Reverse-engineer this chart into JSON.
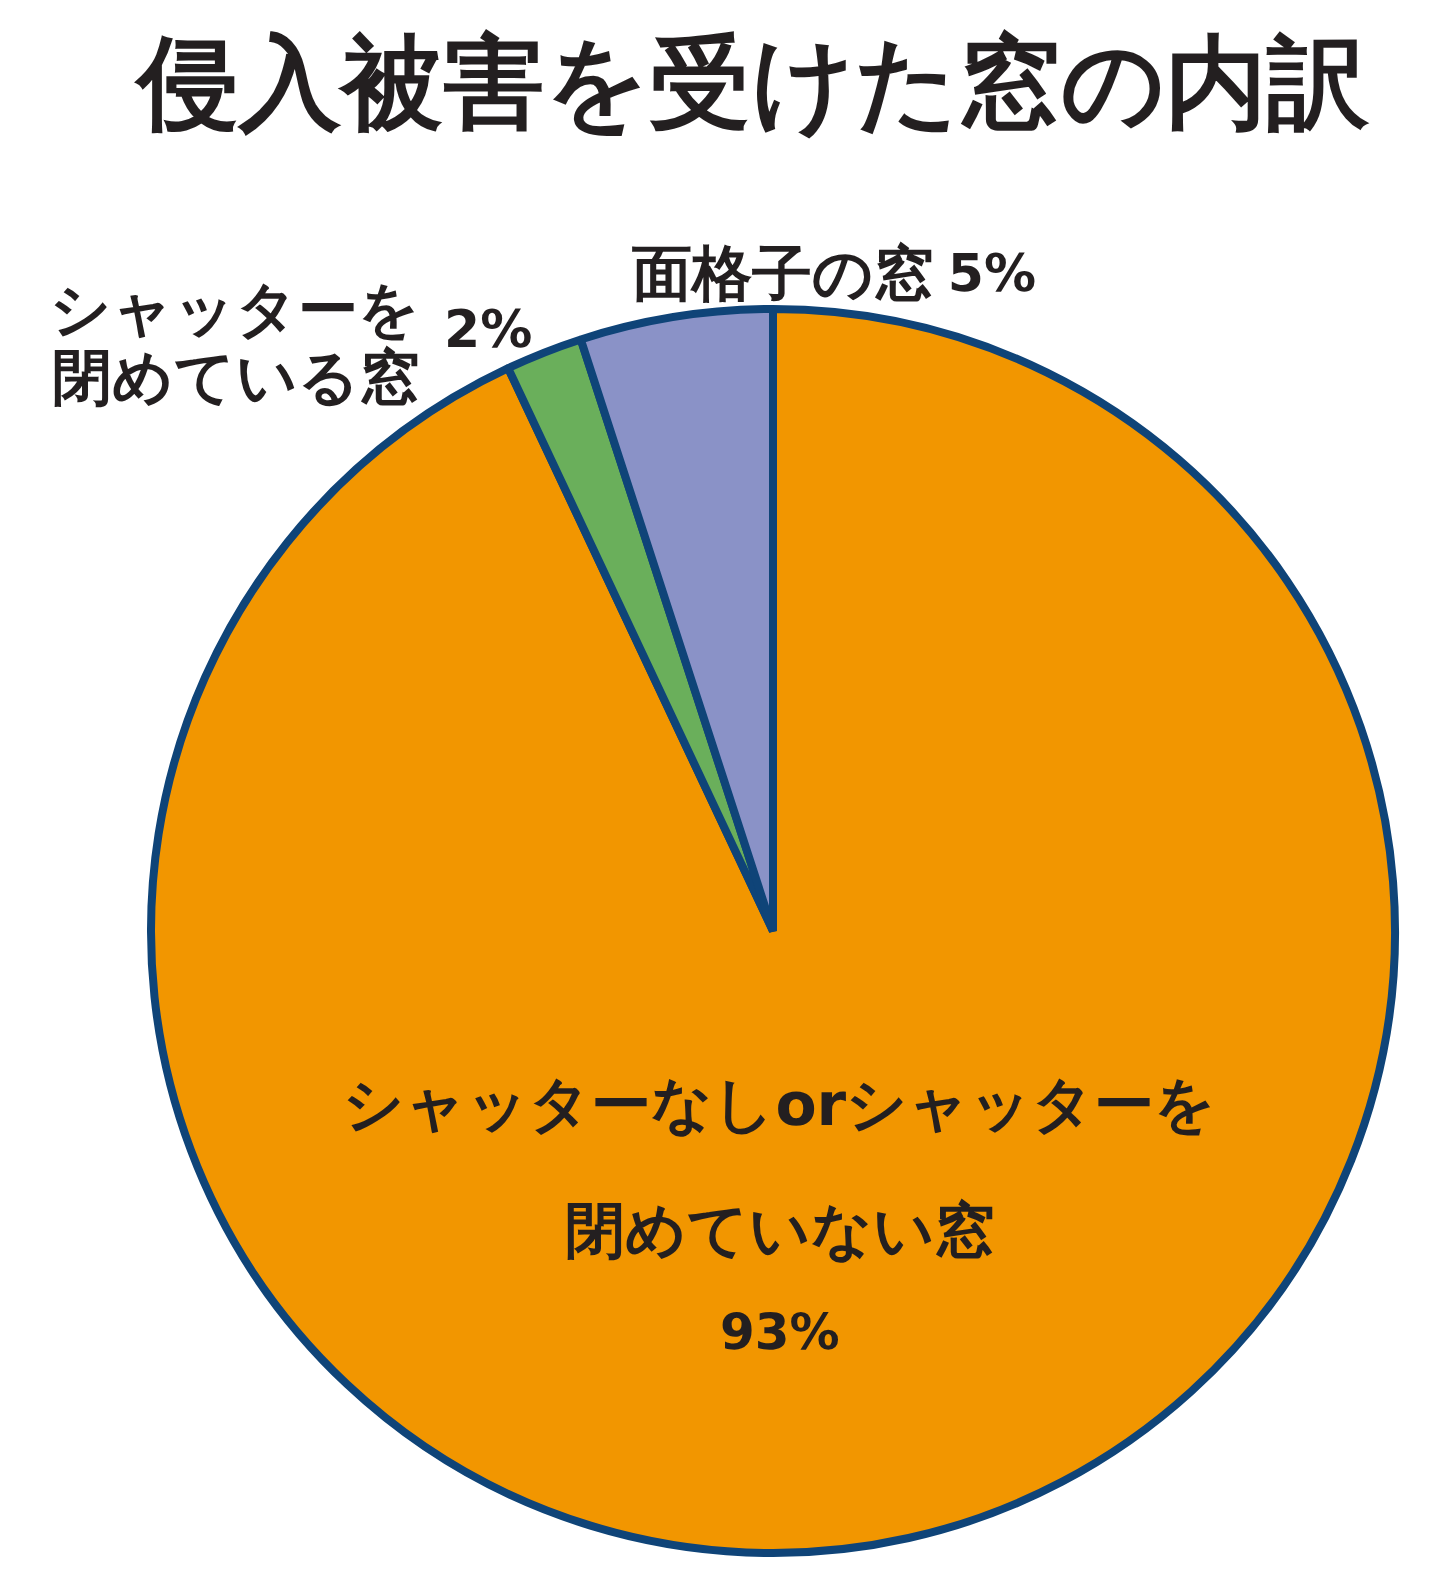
{
  "chart_data": {
    "type": "pie",
    "title": "侵入被害を受けた窓の内訳",
    "categories": [
      "シャッターなしorシャッターを閉めていない窓",
      "シャッターを閉めている窓",
      "面格子の窓"
    ],
    "values": [
      93,
      2,
      5
    ],
    "colors": [
      "#f29600",
      "#6aaf5b",
      "#8a92c7"
    ],
    "value_labels": [
      "93%",
      "2%",
      "5%"
    ]
  }
}
